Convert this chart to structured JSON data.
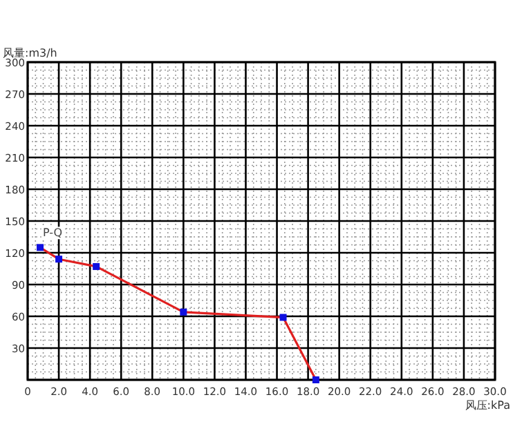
{
  "chart_data": {
    "type": "line",
    "xlabel": "风压:kPa",
    "ylabel": "风量:m3/h",
    "x": [
      0.8,
      2.0,
      4.4,
      10.0,
      16.4,
      18.5
    ],
    "series": [
      {
        "color": "#e02020",
        "values": [
          125,
          114,
          107,
          64,
          59,
          0
        ]
      }
    ],
    "marker": "square",
    "line_style": "solid",
    "grid": true,
    "annotations": [
      "P-Q"
    ],
    "xlim": [
      0,
      30
    ],
    "ylim": [
      0,
      300
    ],
    "xticks": [
      {
        "value": 0,
        "label": "0"
      },
      {
        "value": 2,
        "label": "2.0"
      },
      {
        "value": 4,
        "label": "4.0"
      },
      {
        "value": 6,
        "label": "6.0"
      },
      {
        "value": 8,
        "label": "8.0"
      },
      {
        "value": 10,
        "label": "10.0"
      },
      {
        "value": 12,
        "label": "12.0"
      },
      {
        "value": 14,
        "label": "14.0"
      },
      {
        "value": 16,
        "label": "16.0"
      },
      {
        "value": 18,
        "label": "18.0"
      },
      {
        "value": 20,
        "label": "20.0"
      },
      {
        "value": 22,
        "label": "22.0"
      },
      {
        "value": 24,
        "label": "24.0"
      },
      {
        "value": 26,
        "label": "26.0"
      },
      {
        "value": 28,
        "label": "28.0"
      },
      {
        "value": 30,
        "label": "30.0"
      }
    ],
    "yticks": [
      {
        "value": 0,
        "label": null
      },
      30,
      60,
      90,
      120,
      150,
      180,
      210,
      240,
      270,
      300
    ]
  }
}
